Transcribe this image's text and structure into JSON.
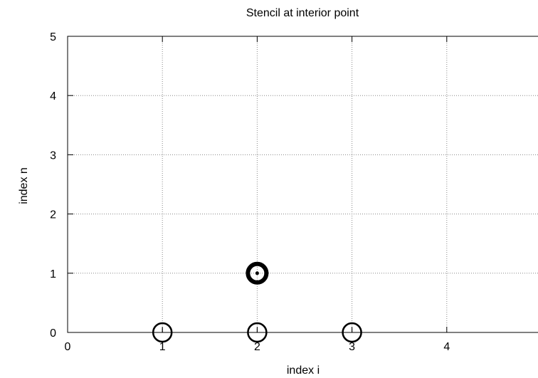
{
  "chart_data": {
    "type": "scatter",
    "title": "Stencil at interior point",
    "xlabel": "index i",
    "ylabel": "index n",
    "xlim": [
      0,
      5
    ],
    "ylim": [
      0,
      5
    ],
    "xticks": [
      "0",
      "1",
      "2",
      "3",
      "4"
    ],
    "yticks": [
      "0",
      "1",
      "2",
      "3",
      "4",
      "5"
    ],
    "grid": true,
    "series": [
      {
        "points": [
          {
            "x": 1,
            "y": 0
          },
          {
            "x": 2,
            "y": 0
          },
          {
            "x": 3,
            "y": 0
          }
        ],
        "marker": "open-circle"
      },
      {
        "points": [
          {
            "x": 2,
            "y": 1
          }
        ],
        "marker": "bold-circle-with-dot"
      }
    ]
  }
}
